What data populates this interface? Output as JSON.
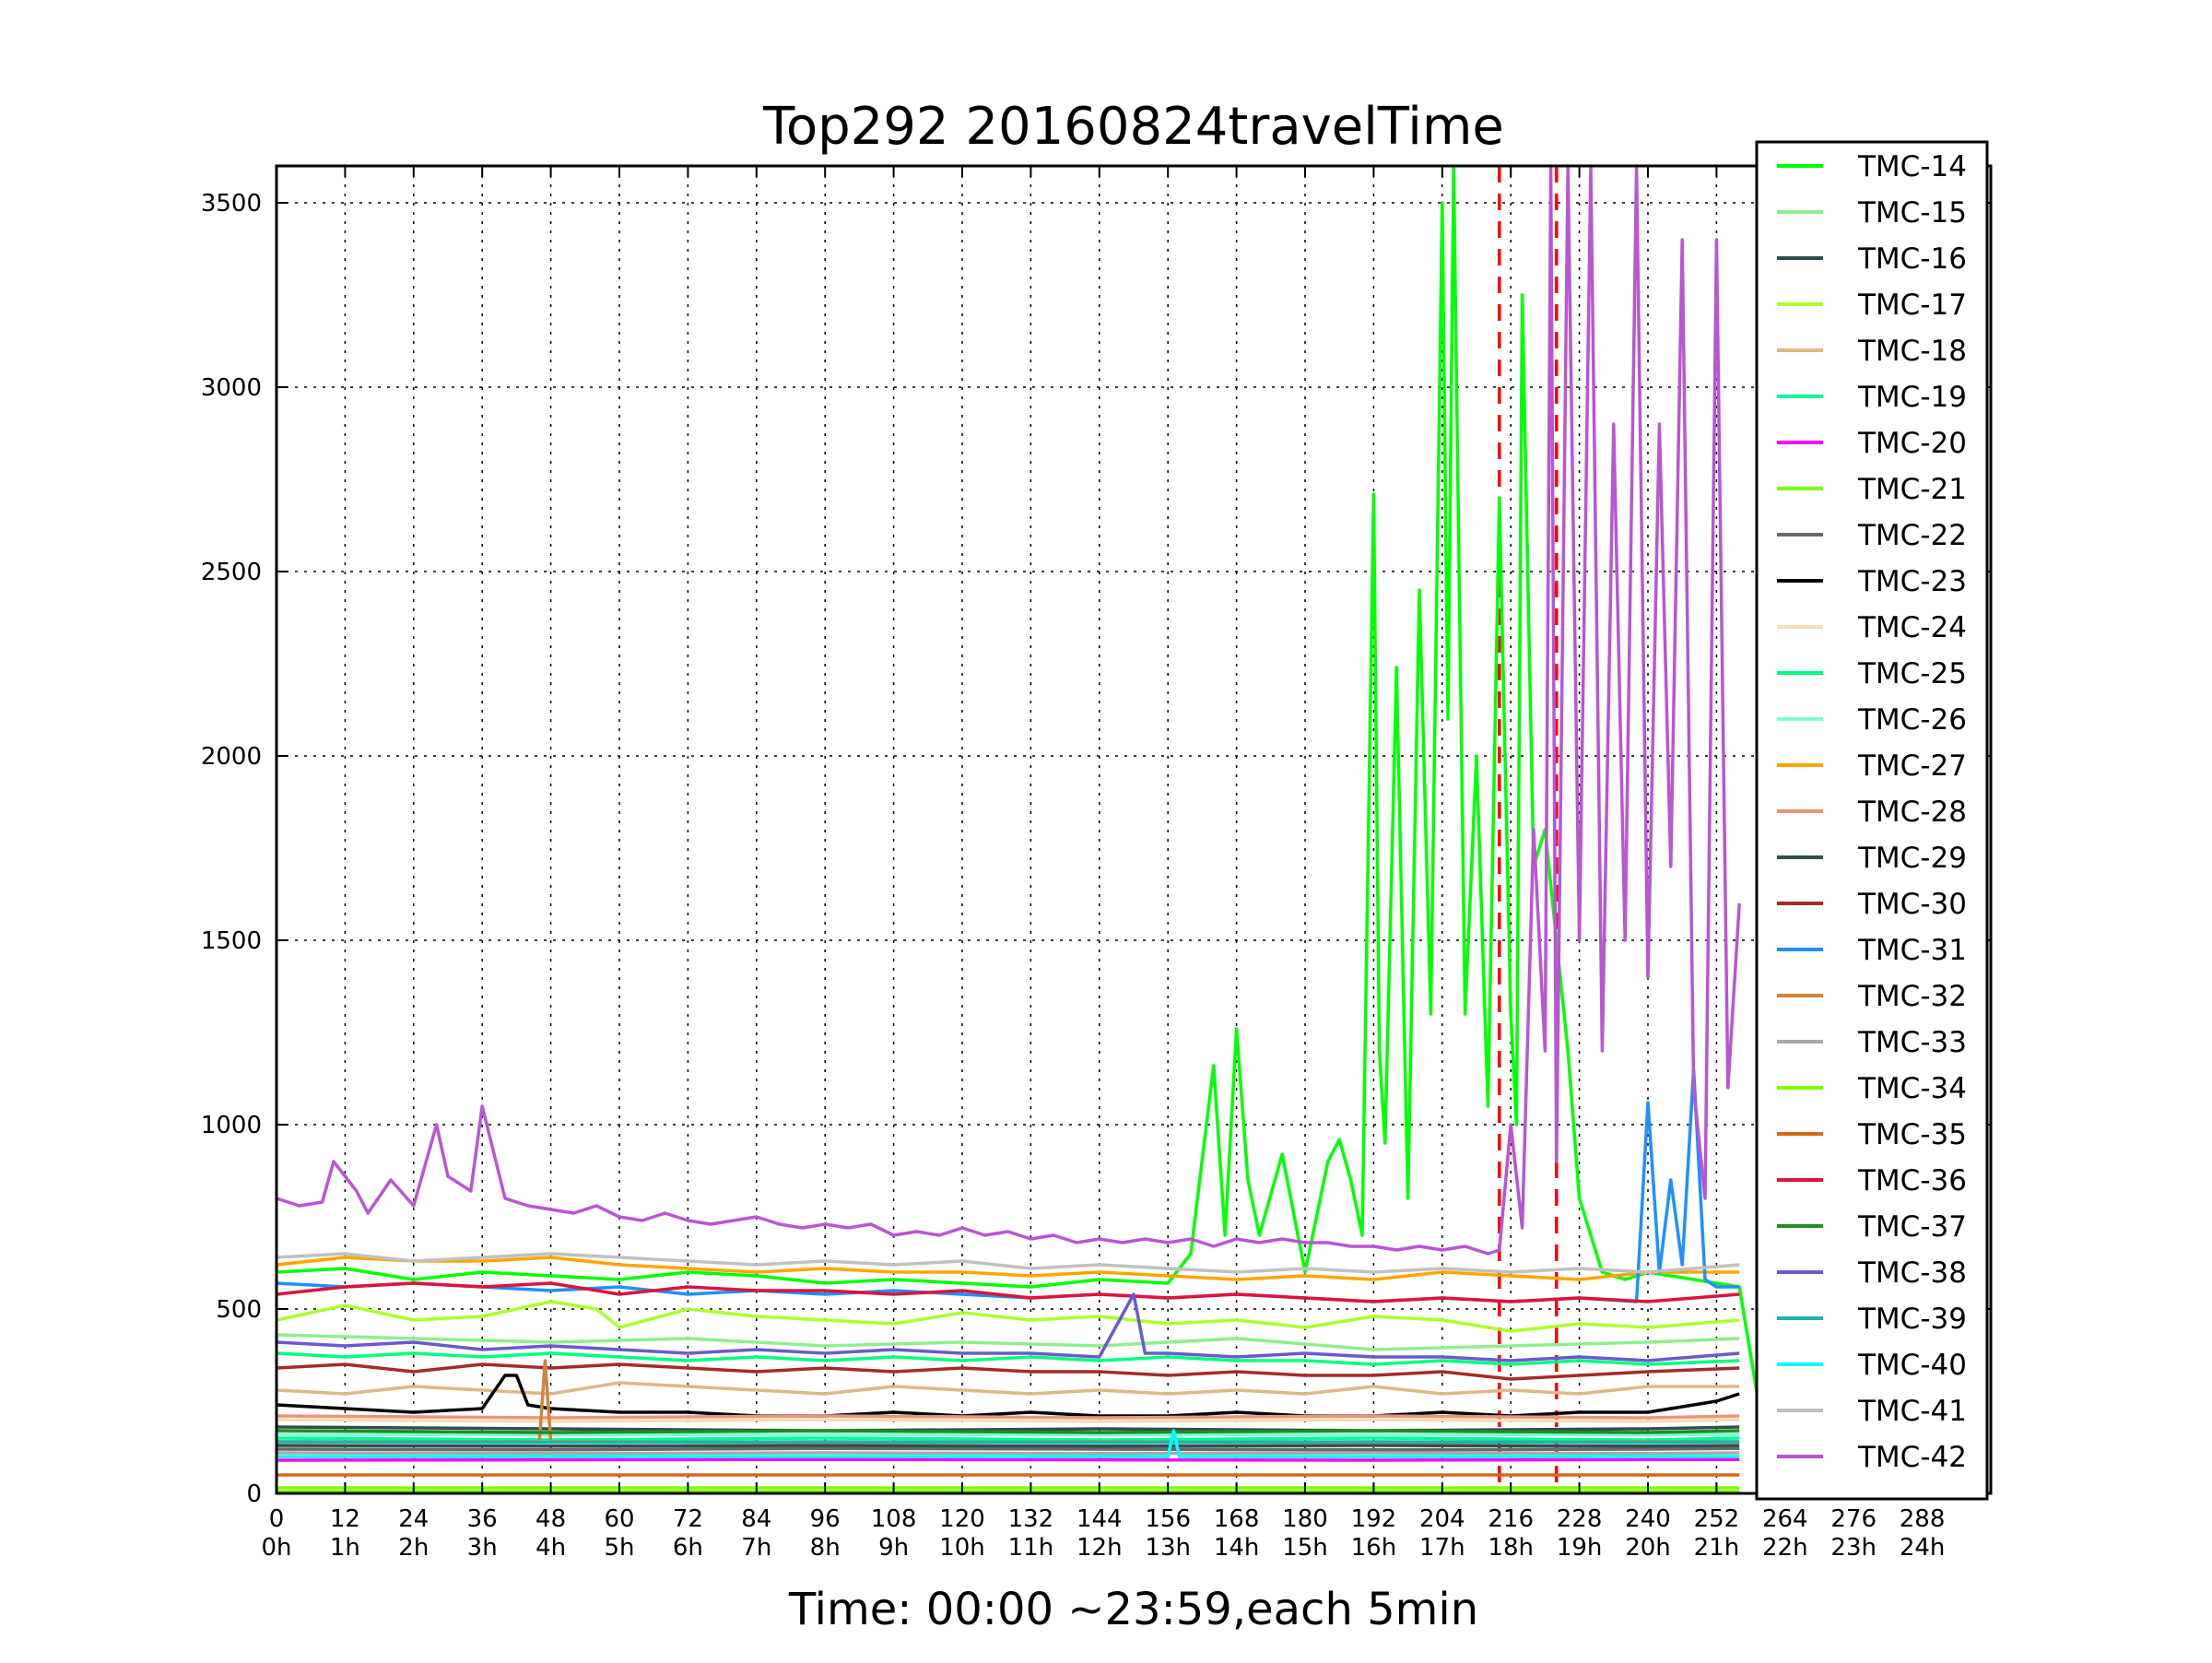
{
  "chart_data": {
    "type": "line",
    "title": "Top292 20160824travelTime",
    "xlabel": "Time: 00:00 ~23:59,each 5min",
    "ylabel": "",
    "xlim": [
      0,
      300
    ],
    "ylim": [
      0,
      3600
    ],
    "grid": true,
    "legend_position": "top-right",
    "x_ticks": [
      0,
      12,
      24,
      36,
      48,
      60,
      72,
      84,
      96,
      108,
      120,
      132,
      144,
      156,
      168,
      180,
      192,
      204,
      216,
      228,
      240,
      252,
      264,
      276,
      288
    ],
    "x_tick_labels": [
      "0\n0h",
      "12\n1h",
      "24\n2h",
      "36\n3h",
      "48\n4h",
      "60\n5h",
      "72\n6h",
      "84\n7h",
      "96\n8h",
      "108\n9h",
      "120\n10h",
      "132\n11h",
      "144\n12h",
      "156\n13h",
      "168\n14h",
      "180\n15h",
      "192\n16h",
      "204\n17h",
      "216\n18h",
      "228\n19h",
      "240\n20h",
      "252\n21h",
      "264\n22h",
      "276\n23h",
      "288\n24h"
    ],
    "y_ticks": [
      0,
      500,
      1000,
      1500,
      2000,
      2500,
      3000,
      3500
    ],
    "y_tick_labels": [
      "0",
      "500",
      "1000",
      "1500",
      "2000",
      "2500",
      "3000",
      "3500"
    ],
    "vlines": [
      {
        "x": 214,
        "color": "#ff0000",
        "style": "dashed"
      },
      {
        "x": 224,
        "color": "#ff0000",
        "style": "dashed"
      }
    ],
    "series": [
      {
        "name": "TMC-14",
        "color": "#00ff00",
        "x": [
          0,
          12,
          24,
          36,
          48,
          60,
          72,
          84,
          96,
          108,
          120,
          132,
          144,
          156,
          160,
          164,
          166,
          168,
          170,
          172,
          176,
          180,
          184,
          186,
          188,
          190,
          192,
          193,
          194,
          196,
          198,
          200,
          202,
          204,
          205,
          206,
          208,
          210,
          212,
          214,
          216,
          217,
          218,
          220,
          222,
          224,
          226,
          228,
          230,
          232,
          236,
          240,
          248,
          256,
          262,
          272,
          290
        ],
        "values": [
          600,
          610,
          580,
          600,
          590,
          580,
          600,
          590,
          570,
          580,
          570,
          560,
          580,
          570,
          650,
          1160,
          700,
          1260,
          850,
          700,
          920,
          600,
          900,
          960,
          850,
          700,
          2710,
          1200,
          950,
          2240,
          800,
          2450,
          1300,
          3500,
          2100,
          3600,
          1300,
          2000,
          1050,
          2700,
          1300,
          1000,
          3250,
          1700,
          1800,
          1500,
          1200,
          800,
          700,
          600,
          580,
          600,
          580,
          560,
          0,
          0,
          0
        ]
      },
      {
        "name": "TMC-15",
        "color": "#90ee90",
        "x": [
          0,
          24,
          48,
          72,
          96,
          120,
          144,
          168,
          192,
          216,
          240,
          256
        ],
        "values": [
          430,
          420,
          410,
          420,
          400,
          410,
          400,
          420,
          390,
          400,
          410,
          420
        ]
      },
      {
        "name": "TMC-16",
        "color": "#2f4f4f",
        "x": [
          0,
          48,
          96,
          144,
          192,
          240,
          256
        ],
        "values": [
          180,
          175,
          170,
          175,
          170,
          175,
          180
        ]
      },
      {
        "name": "TMC-17",
        "color": "#adff2f",
        "x": [
          0,
          12,
          24,
          36,
          48,
          56,
          60,
          72,
          84,
          96,
          108,
          120,
          132,
          144,
          156,
          168,
          180,
          192,
          204,
          216,
          228,
          240,
          256
        ],
        "values": [
          470,
          510,
          470,
          480,
          520,
          500,
          450,
          500,
          480,
          470,
          460,
          490,
          470,
          480,
          460,
          470,
          450,
          480,
          470,
          440,
          460,
          450,
          470
        ]
      },
      {
        "name": "TMC-18",
        "color": "#deb887",
        "x": [
          0,
          12,
          24,
          36,
          48,
          60,
          72,
          84,
          96,
          108,
          120,
          132,
          144,
          156,
          168,
          180,
          192,
          204,
          216,
          228,
          240,
          256
        ],
        "values": [
          280,
          270,
          290,
          280,
          270,
          300,
          290,
          280,
          270,
          290,
          280,
          270,
          280,
          270,
          280,
          270,
          290,
          270,
          280,
          270,
          290,
          290
        ]
      },
      {
        "name": "TMC-19",
        "color": "#00fa9a",
        "x": [
          0,
          48,
          96,
          144,
          192,
          240,
          256
        ],
        "values": [
          150,
          145,
          150,
          145,
          150,
          145,
          150
        ]
      },
      {
        "name": "TMC-20",
        "color": "#ff00ff",
        "x": [
          0,
          96,
          192,
          256
        ],
        "values": [
          90,
          92,
          90,
          92
        ]
      },
      {
        "name": "TMC-21",
        "color": "#7cfc00",
        "x": [
          0,
          96,
          192,
          256
        ],
        "values": [
          5,
          5,
          5,
          5
        ]
      },
      {
        "name": "TMC-22",
        "color": "#696969",
        "x": [
          0,
          48,
          96,
          144,
          192,
          240,
          256
        ],
        "values": [
          120,
          118,
          122,
          120,
          118,
          120,
          122
        ]
      },
      {
        "name": "TMC-23",
        "color": "#000000",
        "x": [
          0,
          12,
          24,
          36,
          40,
          42,
          44,
          48,
          60,
          72,
          84,
          96,
          108,
          120,
          132,
          144,
          156,
          168,
          180,
          192,
          204,
          216,
          228,
          240,
          252,
          256
        ],
        "values": [
          240,
          230,
          220,
          230,
          320,
          320,
          240,
          230,
          220,
          220,
          210,
          210,
          220,
          210,
          220,
          210,
          210,
          220,
          210,
          210,
          220,
          210,
          220,
          220,
          250,
          270
        ]
      },
      {
        "name": "TMC-24",
        "color": "#f5deb3",
        "x": [
          0,
          48,
          96,
          144,
          192,
          240,
          256
        ],
        "values": [
          200,
          195,
          200,
          195,
          200,
          195,
          200
        ]
      },
      {
        "name": "TMC-25",
        "color": "#00ff7f",
        "x": [
          0,
          12,
          24,
          36,
          48,
          60,
          72,
          84,
          96,
          108,
          120,
          132,
          144,
          156,
          168,
          180,
          192,
          204,
          216,
          228,
          240,
          256
        ],
        "values": [
          380,
          370,
          380,
          370,
          380,
          370,
          360,
          370,
          360,
          370,
          360,
          370,
          360,
          370,
          360,
          360,
          350,
          360,
          350,
          360,
          350,
          360
        ]
      },
      {
        "name": "TMC-26",
        "color": "#7fffd4",
        "x": [
          0,
          48,
          96,
          144,
          192,
          240,
          256
        ],
        "values": [
          160,
          158,
          160,
          158,
          160,
          158,
          160
        ]
      },
      {
        "name": "TMC-27",
        "color": "#ffa500",
        "x": [
          0,
          12,
          24,
          36,
          48,
          60,
          72,
          84,
          96,
          108,
          120,
          132,
          144,
          156,
          168,
          180,
          192,
          204,
          216,
          228,
          240,
          256
        ],
        "values": [
          620,
          640,
          630,
          630,
          640,
          620,
          610,
          600,
          610,
          600,
          600,
          590,
          600,
          590,
          580,
          590,
          580,
          600,
          590,
          580,
          600,
          600
        ]
      },
      {
        "name": "TMC-28",
        "color": "#e9967a",
        "x": [
          0,
          48,
          96,
          144,
          192,
          240,
          256
        ],
        "values": [
          210,
          205,
          210,
          205,
          210,
          205,
          210
        ]
      },
      {
        "name": "TMC-29",
        "color": "#2f4f4f",
        "x": [
          0,
          48,
          96,
          144,
          192,
          240,
          256
        ],
        "values": [
          130,
          128,
          130,
          128,
          130,
          128,
          130
        ]
      },
      {
        "name": "TMC-30",
        "color": "#a52a2a",
        "x": [
          0,
          12,
          24,
          36,
          48,
          60,
          72,
          84,
          96,
          108,
          120,
          132,
          144,
          156,
          168,
          180,
          192,
          204,
          216,
          228,
          240,
          256
        ],
        "values": [
          340,
          350,
          330,
          350,
          340,
          350,
          340,
          330,
          340,
          330,
          340,
          330,
          330,
          320,
          330,
          320,
          320,
          330,
          310,
          320,
          330,
          340
        ]
      },
      {
        "name": "TMC-31",
        "color": "#1e90ff",
        "x": [
          0,
          12,
          24,
          36,
          48,
          60,
          72,
          84,
          96,
          108,
          120,
          132,
          144,
          156,
          168,
          180,
          192,
          204,
          216,
          228,
          238,
          240,
          242,
          244,
          246,
          248,
          250,
          252,
          256
        ],
        "values": [
          570,
          560,
          570,
          560,
          550,
          560,
          540,
          550,
          540,
          550,
          540,
          530,
          540,
          530,
          540,
          530,
          520,
          530,
          520,
          530,
          520,
          1060,
          600,
          850,
          620,
          1150,
          580,
          560,
          560
        ]
      },
      {
        "name": "TMC-32",
        "color": "#cd853f",
        "x": [
          0,
          46,
          47,
          48,
          60,
          96,
          144,
          192,
          240,
          256
        ],
        "values": [
          140,
          140,
          360,
          140,
          140,
          138,
          140,
          138,
          140,
          140
        ]
      },
      {
        "name": "TMC-33",
        "color": "#a9a9a9",
        "x": [
          0,
          48,
          96,
          144,
          192,
          240,
          256
        ],
        "values": [
          110,
          108,
          110,
          108,
          110,
          108,
          110
        ]
      },
      {
        "name": "TMC-34",
        "color": "#7fff00",
        "x": [
          0,
          96,
          192,
          256
        ],
        "values": [
          15,
          15,
          15,
          15
        ]
      },
      {
        "name": "TMC-35",
        "color": "#d2691e",
        "x": [
          0,
          48,
          96,
          144,
          192,
          240,
          256
        ],
        "values": [
          50,
          50,
          50,
          50,
          50,
          50,
          50
        ]
      },
      {
        "name": "TMC-36",
        "color": "#dc143c",
        "x": [
          0,
          12,
          24,
          36,
          48,
          60,
          72,
          84,
          96,
          108,
          120,
          132,
          144,
          156,
          168,
          180,
          192,
          204,
          216,
          228,
          240,
          256
        ],
        "values": [
          540,
          560,
          570,
          560,
          570,
          540,
          560,
          550,
          550,
          540,
          550,
          530,
          540,
          530,
          540,
          530,
          520,
          530,
          520,
          530,
          520,
          540
        ]
      },
      {
        "name": "TMC-37",
        "color": "#228b22",
        "x": [
          0,
          48,
          96,
          144,
          192,
          240,
          256
        ],
        "values": [
          170,
          165,
          170,
          165,
          170,
          165,
          170
        ]
      },
      {
        "name": "TMC-38",
        "color": "#6a5acd",
        "x": [
          0,
          12,
          24,
          36,
          48,
          60,
          72,
          84,
          96,
          108,
          120,
          132,
          144,
          150,
          152,
          156,
          168,
          180,
          192,
          204,
          216,
          228,
          240,
          256
        ],
        "values": [
          410,
          400,
          410,
          390,
          400,
          390,
          380,
          390,
          380,
          390,
          380,
          380,
          370,
          540,
          380,
          380,
          370,
          380,
          370,
          370,
          360,
          370,
          360,
          380
        ]
      },
      {
        "name": "TMC-39",
        "color": "#20b2aa",
        "x": [
          0,
          48,
          96,
          144,
          192,
          240,
          256
        ],
        "values": [
          140,
          138,
          140,
          138,
          140,
          138,
          140
        ]
      },
      {
        "name": "TMC-40",
        "color": "#00ffff",
        "x": [
          0,
          48,
          96,
          156,
          157,
          158,
          192,
          240,
          256
        ],
        "values": [
          100,
          100,
          100,
          100,
          170,
          100,
          100,
          100,
          100
        ]
      },
      {
        "name": "TMC-41",
        "color": "#c0c0c0",
        "x": [
          0,
          12,
          24,
          36,
          48,
          60,
          72,
          84,
          96,
          108,
          120,
          132,
          144,
          156,
          168,
          180,
          192,
          204,
          216,
          228,
          240,
          256
        ],
        "values": [
          640,
          650,
          630,
          640,
          650,
          640,
          630,
          620,
          630,
          620,
          630,
          610,
          620,
          610,
          600,
          610,
          600,
          610,
          600,
          610,
          600,
          620
        ]
      },
      {
        "name": "TMC-42",
        "color": "#ba55d3",
        "x": [
          0,
          4,
          8,
          10,
          14,
          16,
          20,
          24,
          28,
          30,
          34,
          36,
          40,
          44,
          48,
          52,
          56,
          60,
          64,
          68,
          72,
          76,
          80,
          84,
          88,
          92,
          96,
          100,
          104,
          108,
          112,
          116,
          120,
          124,
          128,
          132,
          136,
          140,
          144,
          148,
          152,
          156,
          160,
          164,
          168,
          172,
          176,
          180,
          184,
          188,
          192,
          196,
          200,
          204,
          208,
          212,
          214,
          216,
          218,
          220,
          222,
          223,
          224,
          226,
          228,
          230,
          232,
          234,
          236,
          238,
          240,
          242,
          244,
          246,
          248,
          250,
          252,
          254,
          256
        ],
        "values": [
          800,
          780,
          790,
          900,
          820,
          760,
          850,
          780,
          1000,
          860,
          820,
          1050,
          800,
          780,
          770,
          760,
          780,
          750,
          740,
          760,
          740,
          730,
          740,
          750,
          730,
          720,
          730,
          720,
          730,
          700,
          710,
          700,
          720,
          700,
          710,
          690,
          700,
          680,
          690,
          680,
          690,
          680,
          690,
          670,
          690,
          680,
          690,
          680,
          680,
          670,
          670,
          660,
          670,
          660,
          670,
          650,
          660,
          1000,
          720,
          1800,
          1200,
          3600,
          900,
          3600,
          1500,
          3600,
          1200,
          2900,
          1500,
          3600,
          1400,
          2900,
          1700,
          3400,
          1100,
          800,
          3400,
          1100,
          1600
        ]
      }
    ]
  }
}
